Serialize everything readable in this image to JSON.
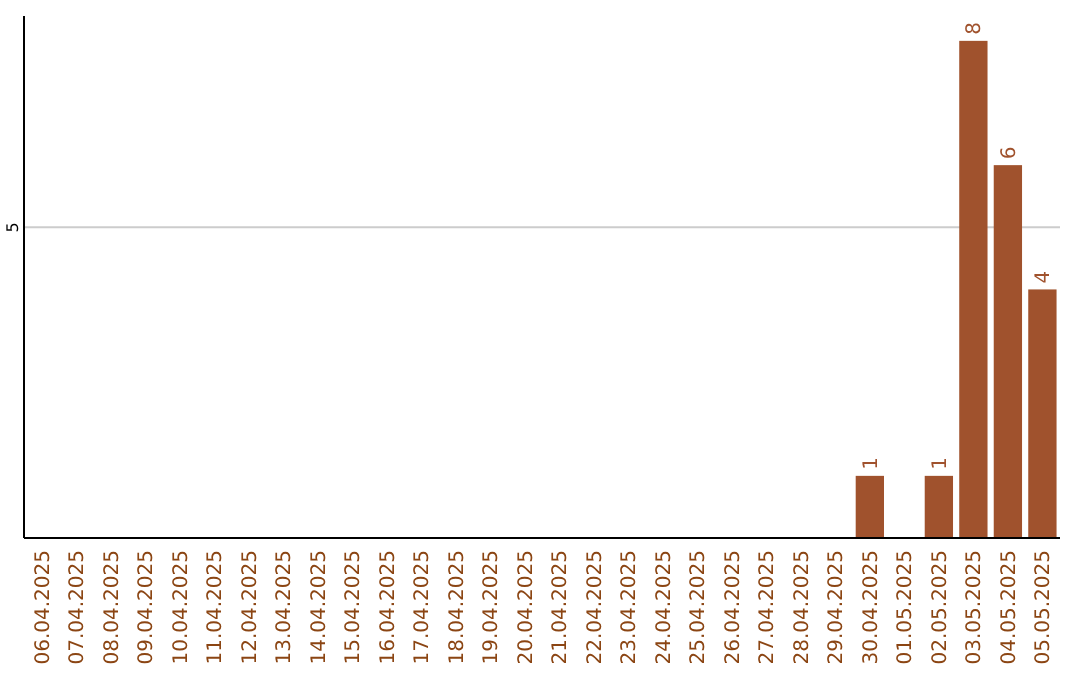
{
  "chart_data": {
    "type": "bar",
    "categories": [
      "06.04.2025",
      "07.04.2025",
      "08.04.2025",
      "09.04.2025",
      "10.04.2025",
      "11.04.2025",
      "12.04.2025",
      "13.04.2025",
      "14.04.2025",
      "15.04.2025",
      "16.04.2025",
      "17.04.2025",
      "18.04.2025",
      "19.04.2025",
      "20.04.2025",
      "21.04.2025",
      "22.04.2025",
      "23.04.2025",
      "24.04.2025",
      "25.04.2025",
      "26.04.2025",
      "27.04.2025",
      "28.04.2025",
      "29.04.2025",
      "30.04.2025",
      "01.05.2025",
      "02.05.2025",
      "03.05.2025",
      "04.05.2025",
      "05.05.2025"
    ],
    "values": [
      null,
      null,
      null,
      null,
      null,
      null,
      null,
      null,
      null,
      null,
      null,
      null,
      null,
      null,
      null,
      null,
      null,
      null,
      null,
      null,
      null,
      null,
      null,
      null,
      1,
      null,
      1,
      8,
      6,
      4
    ],
    "data_labels": true,
    "color": "#a0522d",
    "ylim": [
      0,
      8.4
    ],
    "ref_lines": [
      {
        "axis": "y",
        "value": 5,
        "label": "5",
        "color": "#cccccc"
      }
    ]
  }
}
